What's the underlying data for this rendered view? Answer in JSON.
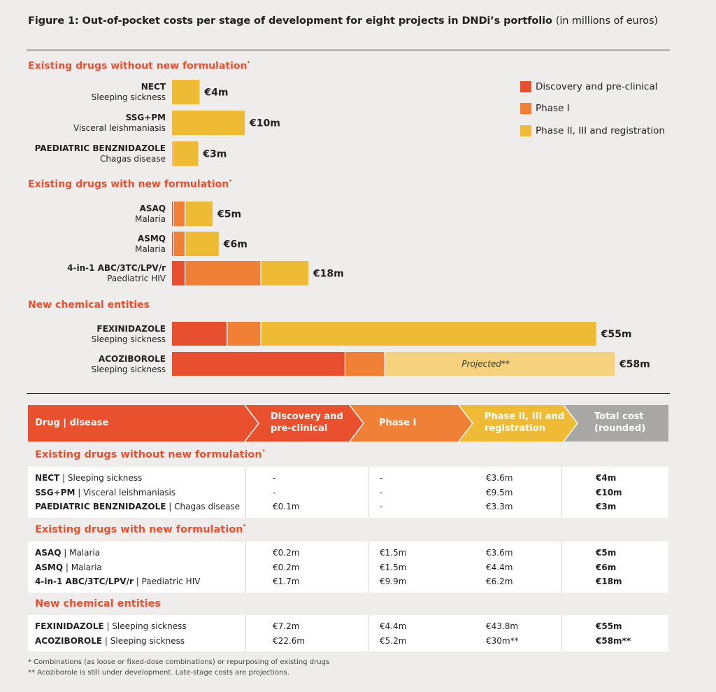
{
  "title": "Figure 1: Out-of-pocket costs per stage of development for eight projects in DNDi’s portfolio",
  "title_unit": "(in millions of euros)",
  "colors": {
    "discovery": "#e84f2f",
    "phase1": "#ef8035",
    "phase2": "#efba34",
    "projected": "#f5d37e",
    "section": "#e8502e",
    "total_header": "#a8a7a5"
  },
  "legend": [
    "Discovery and pre-clinical",
    "Phase I",
    "Phase II, III and registration"
  ],
  "sections": [
    "Existing drugs without new formulation",
    "Existing drugs with new formulation",
    "New chemical entities"
  ],
  "chart_data": {
    "type": "bar",
    "orientation": "horizontal",
    "stacked": true,
    "unit": "millions of euros",
    "series": [
      {
        "name": "Discovery and pre-clinical",
        "values": [
          0,
          0,
          0.1,
          0.2,
          0.2,
          1.7,
          7.2,
          22.6
        ]
      },
      {
        "name": "Phase I",
        "values": [
          0,
          0,
          0,
          1.5,
          1.5,
          9.9,
          4.4,
          5.2
        ]
      },
      {
        "name": "Phase II, III and registration",
        "values": [
          3.6,
          9.5,
          3.3,
          3.6,
          4.4,
          6.2,
          43.8,
          30
        ]
      }
    ],
    "bars": [
      {
        "name": "NECT",
        "disease": "Sleeping sickness",
        "total_label": "€4m",
        "section": 0,
        "projected": false
      },
      {
        "name": "SSG+PM",
        "disease": "Visceral leishmaniasis",
        "total_label": "€10m",
        "section": 0,
        "projected": false
      },
      {
        "name": "PAEDIATRIC BENZNIDAZOLE",
        "disease": "Chagas disease",
        "total_label": "€3m",
        "section": 0,
        "projected": false
      },
      {
        "name": "ASAQ",
        "disease": "Malaria",
        "total_label": "€5m",
        "section": 1,
        "projected": false
      },
      {
        "name": "ASMQ",
        "disease": "Malaria",
        "total_label": "€6m",
        "section": 1,
        "projected": false
      },
      {
        "name": "4-in-1 ABC/3TC/LPV/r",
        "disease": "Paediatric HIV",
        "total_label": "€18m",
        "section": 1,
        "projected": false
      },
      {
        "name": "FEXINIDAZOLE",
        "disease": "Sleeping sickness",
        "total_label": "€55m",
        "section": 2,
        "projected": false
      },
      {
        "name": "ACOZIBOROLE",
        "disease": "Sleeping sickness",
        "total_label": "€58m",
        "section": 2,
        "projected": true,
        "projected_label": "Projected**"
      }
    ]
  },
  "table": {
    "headers": [
      "Drug | disease",
      "Discovery and pre-clinical",
      "Phase I",
      "Phase II, III and registration",
      "Total cost (rounded)"
    ],
    "groups": [
      {
        "title": "Existing drugs without new formulation",
        "rows": [
          {
            "name": "NECT",
            "disease": "Sleeping sickness",
            "discovery": "-",
            "phase1": "-",
            "phase2": "€3.6m",
            "total": "€4m"
          },
          {
            "name": "SSG+PM",
            "disease": "Visceral leishmaniasis",
            "discovery": "-",
            "phase1": "-",
            "phase2": "€9.5m",
            "total": "€10m"
          },
          {
            "name": "PAEDIATRIC BENZNIDAZOLE",
            "disease": "Chagas disease",
            "discovery": "€0.1m",
            "phase1": "-",
            "phase2": "€3.3m",
            "total": "€3m"
          }
        ]
      },
      {
        "title": "Existing drugs with new formulation",
        "rows": [
          {
            "name": "ASAQ",
            "disease": "Malaria",
            "discovery": "€0.2m",
            "phase1": "€1.5m",
            "phase2": "€3.6m",
            "total": "€5m"
          },
          {
            "name": "ASMQ",
            "disease": "Malaria",
            "discovery": "€0.2m",
            "phase1": "€1.5m",
            "phase2": "€4.4m",
            "total": "€6m"
          },
          {
            "name": "4-in-1 ABC/3TC/LPV/r",
            "disease": "Paediatric HIV",
            "discovery": "€1.7m",
            "phase1": "€9.9m",
            "phase2": "€6.2m",
            "total": "€18m"
          }
        ]
      },
      {
        "title": "New chemical entities",
        "rows": [
          {
            "name": "FEXINIDAZOLE",
            "disease": "Sleeping sickness",
            "discovery": "€7.2m",
            "phase1": "€4.4m",
            "phase2": "€43.8m",
            "total": "€55m"
          },
          {
            "name": "ACOZIBOROLE",
            "disease": "Sleeping sickness",
            "discovery": "€22.6m",
            "phase1": "€5.2m",
            "phase2": "€30m**",
            "total": "€58m**"
          }
        ]
      }
    ]
  },
  "footnotes": [
    "*   Combinations (as loose or fixed-dose combinations) or repurposing of existing drugs",
    "** Acoziborole is still under development. Late-stage costs are projections."
  ]
}
